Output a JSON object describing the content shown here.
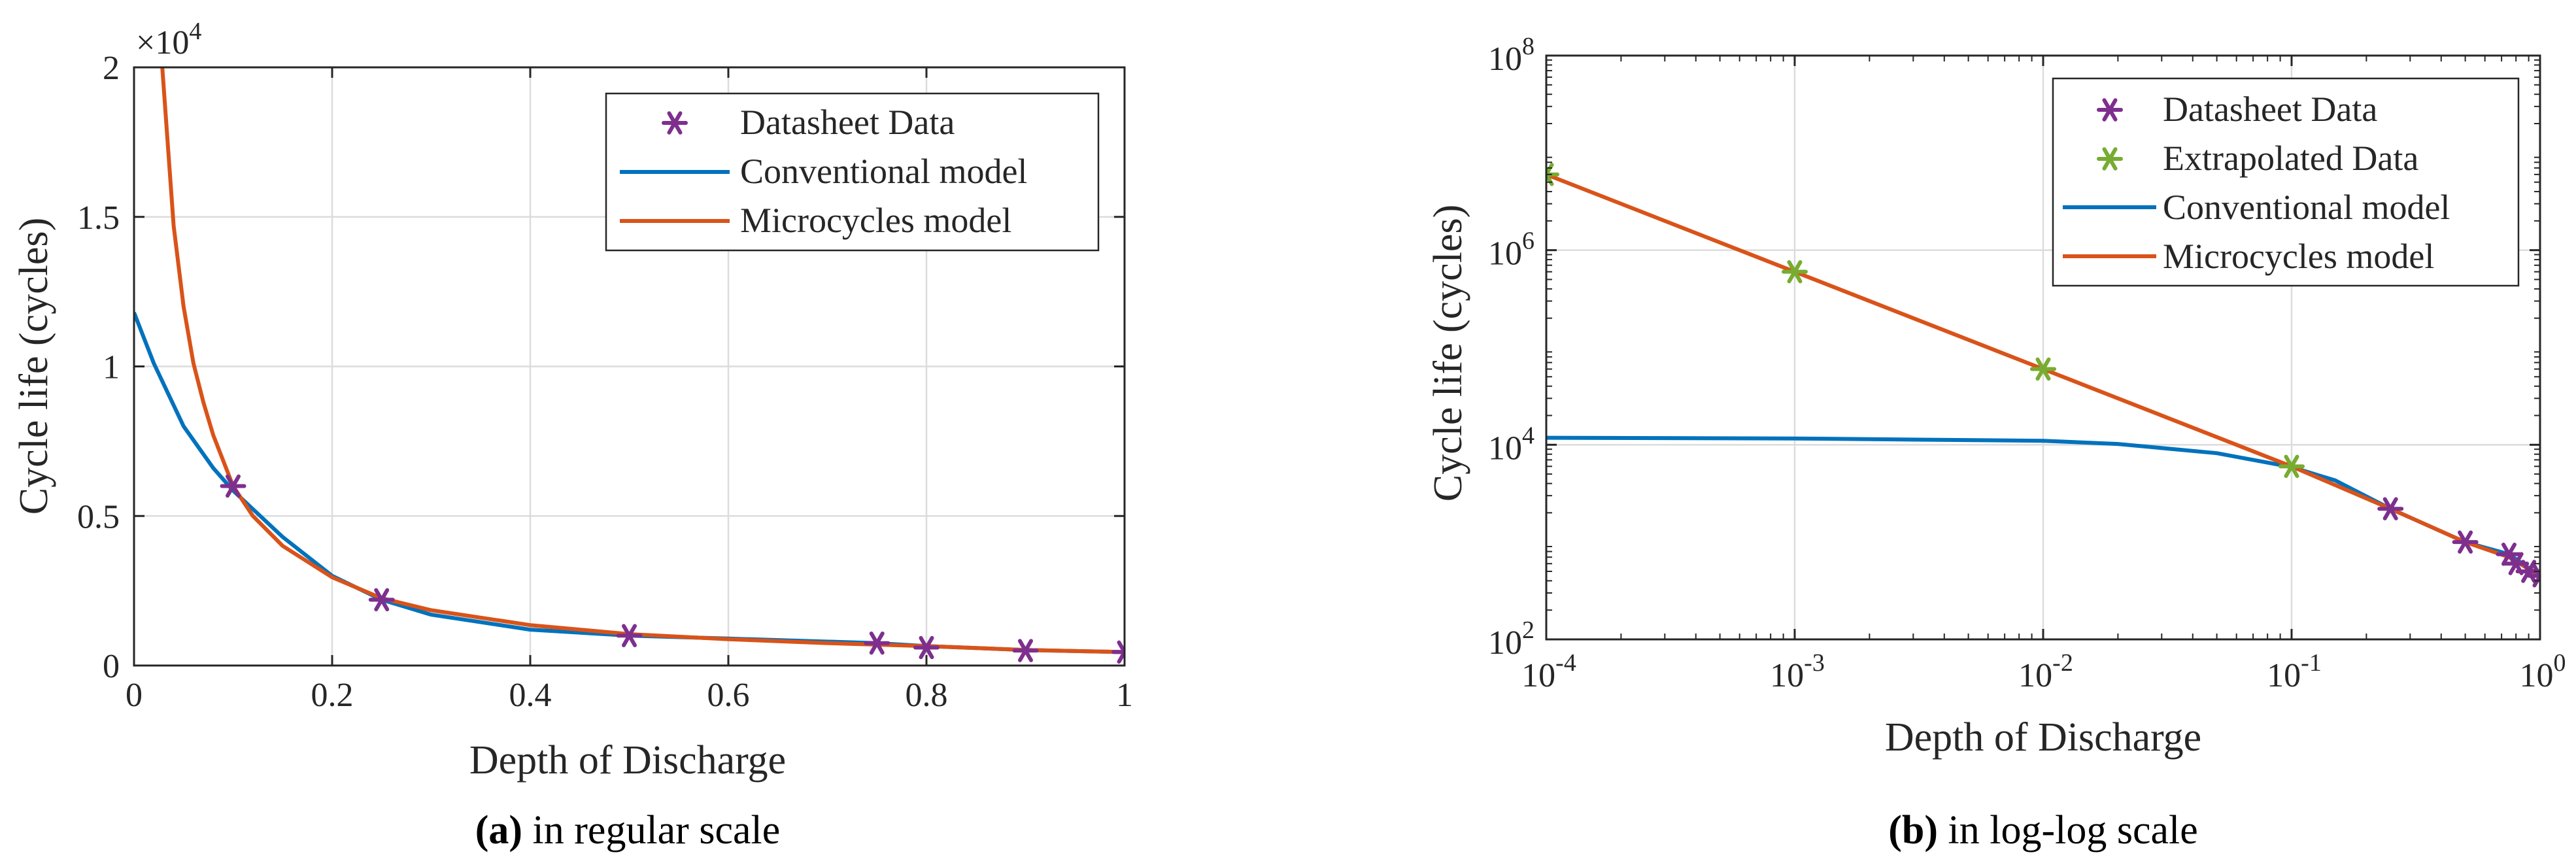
{
  "colors": {
    "datasheet": "#7E2F8E",
    "extrapolated": "#77AC30",
    "conventional": "#0072BD",
    "microcycles": "#D95319",
    "grid": "#dcdcdc",
    "axis": "#262626"
  },
  "chart_data": [
    {
      "type": "line",
      "scale": "linear",
      "caption_label": "(a)",
      "caption_text": " in regular scale",
      "xlabel": "Depth of Discharge",
      "ylabel": "Cycle life (cycles)",
      "y_multiplier": "×10",
      "y_multiplier_exp": "4",
      "xlim": [
        0,
        1
      ],
      "ylim": [
        0,
        20000
      ],
      "x_ticks": [
        0,
        0.2,
        0.4,
        0.6,
        0.8,
        1
      ],
      "x_tick_labels": [
        "0",
        "0.2",
        "0.4",
        "0.6",
        "0.8",
        "1"
      ],
      "y_ticks": [
        0,
        5000,
        10000,
        15000,
        20000
      ],
      "y_tick_labels": [
        "0",
        "0.5",
        "1",
        "1.5",
        "2"
      ],
      "grid": true,
      "legend_position": "top-right",
      "legend": [
        "Datasheet Data",
        "Conventional model",
        "Microcycles model"
      ],
      "series": [
        {
          "name": "Datasheet Data",
          "kind": "marker",
          "x": [
            0.1,
            0.25,
            0.5,
            0.75,
            0.8,
            0.9,
            1.0
          ],
          "y": [
            6000,
            2200,
            1000,
            750,
            600,
            500,
            450
          ]
        },
        {
          "name": "Conventional model",
          "kind": "line",
          "x": [
            0,
            0.02,
            0.05,
            0.08,
            0.1,
            0.15,
            0.2,
            0.25,
            0.3,
            0.4,
            0.5,
            0.6,
            0.75,
            0.8,
            0.9,
            1.0
          ],
          "y": [
            11800,
            10100,
            8000,
            6600,
            5850,
            4300,
            3000,
            2200,
            1700,
            1200,
            1000,
            900,
            750,
            650,
            520,
            450
          ]
        },
        {
          "name": "Microcycles model",
          "kind": "line",
          "x": [
            0.0285,
            0.04,
            0.05,
            0.06,
            0.07,
            0.08,
            0.1,
            0.12,
            0.15,
            0.2,
            0.25,
            0.3,
            0.4,
            0.5,
            0.6,
            0.7,
            0.8,
            0.9,
            1.0
          ],
          "y": [
            20000,
            14700,
            12000,
            10100,
            8800,
            7700,
            6000,
            5000,
            4000,
            2950,
            2250,
            1850,
            1350,
            1050,
            880,
            750,
            650,
            520,
            450
          ]
        }
      ]
    },
    {
      "type": "line",
      "scale": "log-log",
      "caption_label": "(b)",
      "caption_text": " in log-log scale",
      "xlabel": "Depth of Discharge",
      "ylabel": "Cycle life (cycles)",
      "xlim": [
        0.0001,
        1
      ],
      "ylim": [
        100,
        100000000
      ],
      "x_ticks": [
        0.0001,
        0.001,
        0.01,
        0.1,
        1
      ],
      "x_tick_bases": [
        "10",
        "10",
        "10",
        "10",
        "10"
      ],
      "x_tick_exps": [
        "-4",
        "-3",
        "-2",
        "-1",
        "0"
      ],
      "y_ticks": [
        100,
        10000,
        1000000,
        100000000
      ],
      "y_tick_bases": [
        "10",
        "10",
        "10",
        "10"
      ],
      "y_tick_exps": [
        "2",
        "4",
        "6",
        "8"
      ],
      "grid": true,
      "legend_position": "top-right",
      "legend": [
        "Datasheet Data",
        "Extrapolated Data",
        "Conventional model",
        "Microcycles model"
      ],
      "series": [
        {
          "name": "Datasheet Data",
          "kind": "marker",
          "x": [
            0.25,
            0.5,
            0.75,
            0.8,
            0.9,
            1.0
          ],
          "y": [
            2200,
            1000,
            750,
            600,
            500,
            450
          ]
        },
        {
          "name": "Extrapolated Data",
          "kind": "marker",
          "x": [
            0.0001,
            0.001,
            0.01,
            0.1
          ],
          "y": [
            6000000,
            600000,
            60000,
            6000
          ]
        },
        {
          "name": "Conventional model",
          "kind": "line",
          "x": [
            0.0001,
            0.001,
            0.01,
            0.02,
            0.05,
            0.1,
            0.15,
            0.25,
            0.5,
            0.75,
            1.0
          ],
          "y": [
            11800,
            11600,
            11000,
            10200,
            8200,
            5900,
            4300,
            2200,
            1000,
            750,
            450
          ]
        },
        {
          "name": "Microcycles model",
          "kind": "line",
          "x": [
            0.0001,
            0.001,
            0.01,
            0.1,
            0.25,
            0.5,
            0.75,
            1.0
          ],
          "y": [
            6000000,
            600000,
            60000,
            6000,
            2200,
            1000,
            700,
            450
          ]
        }
      ]
    }
  ]
}
